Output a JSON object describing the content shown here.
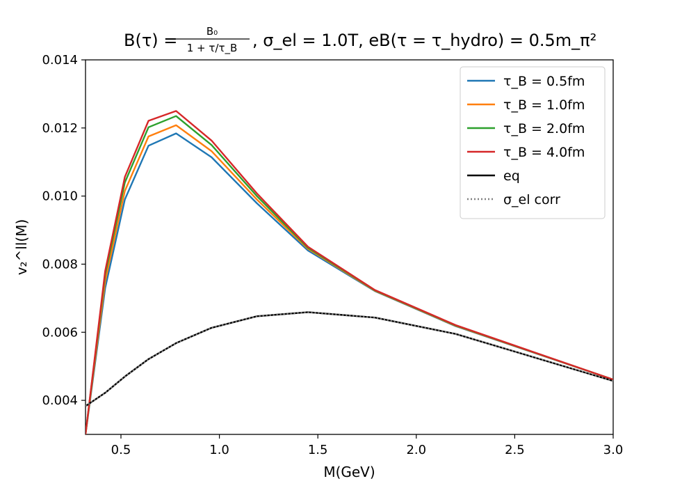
{
  "chart_data": {
    "type": "line",
    "title": "B(τ) = B₀ / (1 + τ/τ_B), σ_el = 1.0T, eB(τ = τ_hydro) = 0.5m_π²",
    "title_parts": {
      "p1": "B(τ) = ",
      "frac_num": "B₀",
      "frac_den": "1 + τ/τ_B",
      "p2": ", σ_el = 1.0T, eB(τ = τ_hydro) = 0.5m_π²"
    },
    "xlabel": "M(GeV)",
    "ylabel": "v₂^ll(M)",
    "xlim": [
      0.32,
      3.0
    ],
    "ylim": [
      0.003,
      0.014
    ],
    "x_ticks": [
      "0.5",
      "1.0",
      "1.5",
      "2.0",
      "2.5",
      "3.0"
    ],
    "y_ticks": [
      "0.004",
      "0.006",
      "0.008",
      "0.010",
      "0.012",
      "0.014"
    ],
    "x_tick_values": [
      0.5,
      1.0,
      1.5,
      2.0,
      2.5,
      3.0
    ],
    "y_tick_values": [
      0.004,
      0.006,
      0.008,
      0.01,
      0.012,
      0.014
    ],
    "legend_position": "top-right",
    "series": [
      {
        "name": "τ_B = 0.5fm",
        "label": "τ_B = 0.5fm",
        "color": "#1f77b4",
        "style": "solid",
        "x": [
          0.32,
          0.42,
          0.52,
          0.64,
          0.78,
          0.96,
          1.19,
          1.45,
          1.79,
          2.2,
          3.0
        ],
        "y": [
          0.003,
          0.0073,
          0.0099,
          0.01148,
          0.01184,
          0.01114,
          0.00979,
          0.0084,
          0.00721,
          0.00618,
          0.00461
        ]
      },
      {
        "name": "τ_B = 1.0fm",
        "label": "τ_B = 1.0fm",
        "color": "#ff7f0e",
        "style": "solid",
        "x": [
          0.32,
          0.42,
          0.52,
          0.64,
          0.78,
          0.96,
          1.19,
          1.45,
          1.79,
          2.2,
          3.0
        ],
        "y": [
          0.003,
          0.0075,
          0.01015,
          0.01175,
          0.01208,
          0.01132,
          0.0099,
          0.00845,
          0.00722,
          0.00619,
          0.00461
        ]
      },
      {
        "name": "τ_B = 2.0fm",
        "label": "τ_B = 2.0fm",
        "color": "#2ca02c",
        "style": "solid",
        "x": [
          0.32,
          0.42,
          0.52,
          0.64,
          0.78,
          0.96,
          1.19,
          1.45,
          1.79,
          2.2,
          3.0
        ],
        "y": [
          0.003,
          0.0077,
          0.0104,
          0.01202,
          0.01235,
          0.0115,
          0.01,
          0.00848,
          0.00723,
          0.0062,
          0.00461
        ]
      },
      {
        "name": "τ_B = 4.0fm",
        "label": "τ_B = 4.0fm",
        "color": "#d62728",
        "style": "solid",
        "x": [
          0.32,
          0.42,
          0.52,
          0.64,
          0.78,
          0.96,
          1.19,
          1.45,
          1.79,
          2.2,
          3.0
        ],
        "y": [
          0.003,
          0.0078,
          0.01056,
          0.01221,
          0.0125,
          0.01163,
          0.01008,
          0.00851,
          0.00724,
          0.00621,
          0.00461
        ]
      },
      {
        "name": "eq",
        "label": "eq",
        "color": "#000000",
        "style": "solid",
        "x": [
          0.32,
          0.42,
          0.52,
          0.64,
          0.78,
          0.96,
          1.19,
          1.45,
          1.79,
          2.2,
          3.0
        ],
        "y": [
          0.00383,
          0.00422,
          0.0047,
          0.00521,
          0.00568,
          0.00613,
          0.00647,
          0.00659,
          0.00643,
          0.00595,
          0.00457
        ]
      },
      {
        "name": "σ_el corr",
        "label": "σ_el corr",
        "color": "#808080",
        "style": "dotted",
        "x": [
          0.32,
          0.42,
          0.52,
          0.64,
          0.78,
          0.96,
          1.19,
          1.45,
          1.79,
          2.2,
          3.0
        ],
        "y": [
          0.00383,
          0.00422,
          0.0047,
          0.00521,
          0.00568,
          0.00613,
          0.00647,
          0.00659,
          0.00643,
          0.00595,
          0.00457
        ]
      }
    ]
  }
}
